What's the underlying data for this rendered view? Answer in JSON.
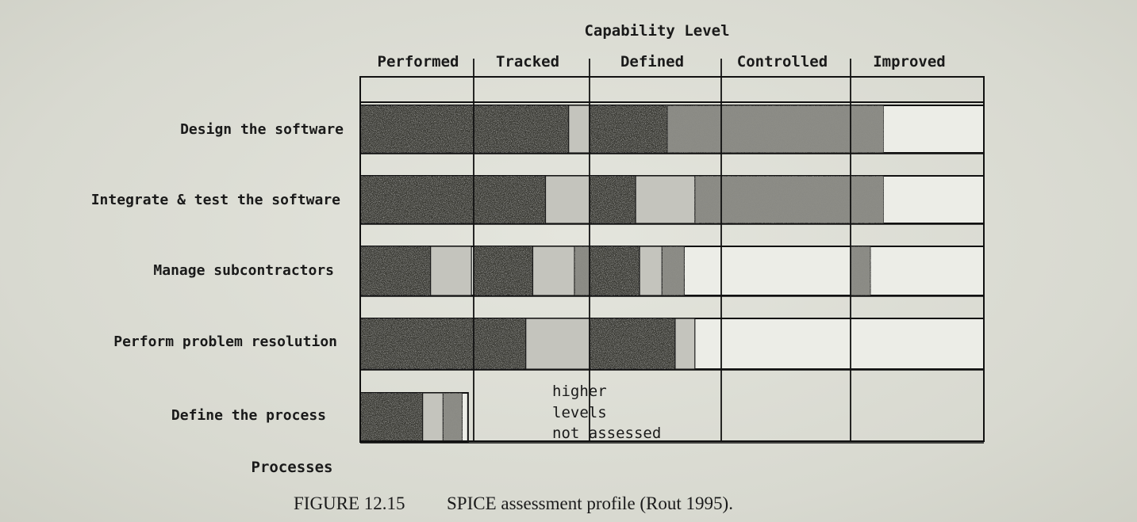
{
  "header": {
    "title": "Capability Level"
  },
  "levels": [
    "Performed",
    "Tracked",
    "Defined",
    "Controlled",
    "Improved"
  ],
  "processes_label": "Processes",
  "note": [
    "higher",
    "levels",
    "not assessed"
  ],
  "caption": {
    "number": "FIGURE 12.15",
    "text": "SPICE assessment profile (Rout 1995)."
  },
  "colors": {
    "fully": "#3a3a36",
    "largely": "#8a8a84",
    "partially": "#c4c4bd",
    "grid": "#111111"
  },
  "chart_data": {
    "type": "table",
    "columns": [
      "Performed",
      "Tracked",
      "Defined",
      "Controlled",
      "Improved"
    ],
    "rows": [
      {
        "name": "Design the software",
        "segments": [
          [
            "dark",
            0.0,
            1.82
          ],
          [
            "light",
            1.82,
            2.0
          ],
          [
            "dark",
            2.0,
            2.59
          ],
          [
            "medium",
            2.59,
            3.0
          ],
          [
            "medium",
            3.0,
            4.0
          ],
          [
            "medium",
            4.0,
            4.25
          ]
        ]
      },
      {
        "name": "Integrate & test the software",
        "segments": [
          [
            "dark",
            0.0,
            1.62
          ],
          [
            "light",
            1.62,
            2.0
          ],
          [
            "dark",
            2.0,
            2.35
          ],
          [
            "light",
            2.35,
            2.8
          ],
          [
            "medium",
            2.8,
            3.0
          ],
          [
            "medium",
            3.0,
            4.0
          ],
          [
            "medium",
            4.0,
            4.25
          ]
        ]
      },
      {
        "name": "Manage subcontractors",
        "segments": [
          [
            "dark",
            0.0,
            0.62
          ],
          [
            "light",
            0.62,
            0.98
          ],
          [
            "dark",
            1.0,
            1.51
          ],
          [
            "light",
            1.51,
            1.87
          ],
          [
            "medium",
            1.87,
            2.0
          ],
          [
            "dark",
            2.0,
            2.38
          ],
          [
            "light",
            2.38,
            2.55
          ],
          [
            "medium",
            2.55,
            2.72
          ],
          [
            "medium",
            4.0,
            4.15
          ]
        ]
      },
      {
        "name": "Perform problem resolution",
        "segments": [
          [
            "dark",
            0.0,
            1.45
          ],
          [
            "light",
            1.45,
            2.0
          ],
          [
            "dark",
            2.0,
            2.65
          ],
          [
            "light",
            2.65,
            2.8
          ]
        ]
      },
      {
        "name": "Define the process",
        "segments": [
          [
            "dark",
            0.0,
            0.55
          ],
          [
            "light",
            0.55,
            0.73
          ],
          [
            "medium",
            0.73,
            0.9
          ]
        ]
      }
    ]
  }
}
